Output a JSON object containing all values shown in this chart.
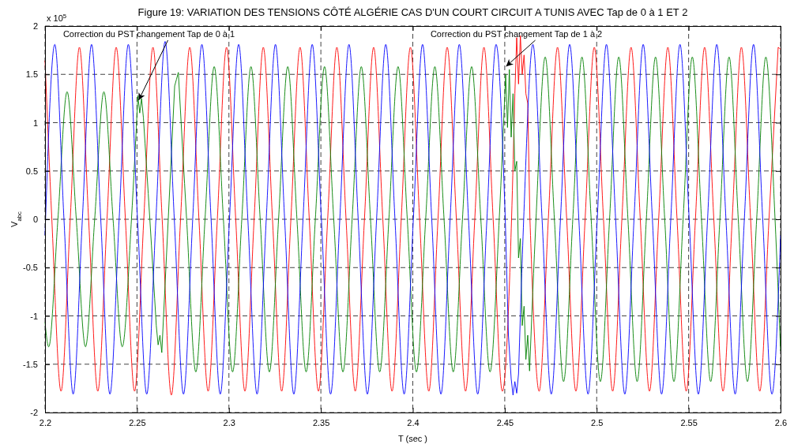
{
  "chart_data": {
    "type": "line",
    "title": "Figure 19: VARIATION DES TENSIONS CÔTÉ ALGÉRIE CAS D'UN COURT CIRCUIT A TUNIS AVEC Tap de 0 à 1 ET 2",
    "xlabel": "T (sec )",
    "ylabel": "V$_{abc}$",
    "xlim": [
      2.2,
      2.6
    ],
    "xticks": [
      2.2,
      2.25,
      2.3,
      2.35,
      2.4,
      2.45,
      2.5,
      2.55,
      2.6
    ],
    "ylim": [
      -2,
      2
    ],
    "yticks": [
      -2,
      -1.5,
      -1,
      -0.5,
      0,
      0.5,
      1,
      1.5,
      2
    ],
    "grid": true,
    "annotations": [
      "x 10$^{5}$",
      {
        "text": "Correction du PST changement Tap de 0 à 1",
        "x": 2.2505,
        "y": 1.2
      },
      {
        "text": "Correction du PST changement Tap de 1 à 2",
        "x": 2.4503,
        "y": 1.55
      }
    ],
    "series": [
      {
        "color": "#ff0000",
        "x": [
          2.2,
          2.2037,
          2.2087,
          2.2137,
          2.2187,
          2.2237,
          2.2287,
          2.2337,
          2.2387,
          2.2437,
          2.2487,
          2.2537,
          2.2587,
          2.2637,
          2.2687,
          2.2737,
          2.2787,
          2.2837,
          2.2887,
          2.2937,
          2.2987,
          2.3037,
          2.3087,
          2.3137,
          2.3187,
          2.3237,
          2.3287,
          2.3337,
          2.3387,
          2.3437,
          2.3487,
          2.3537,
          2.3587,
          2.3637,
          2.3687,
          2.3737,
          2.3787,
          2.3837,
          2.3887,
          2.3937,
          2.3987,
          2.4037,
          2.4087,
          2.4137,
          2.4187,
          2.4237,
          2.4287,
          2.4337,
          2.4387,
          2.4437,
          2.4487,
          2.4537,
          2.4555,
          2.4565,
          2.4575,
          2.4585,
          2.4595,
          2.4605,
          2.4615,
          2.4625,
          2.4637,
          2.4687,
          2.4737,
          2.4787,
          2.4837,
          2.4887,
          2.4937,
          2.4987,
          2.5037,
          2.5087,
          2.5137,
          2.5187,
          2.5237,
          2.5287,
          2.5337,
          2.5387,
          2.5437,
          2.5487,
          2.5537,
          2.5587,
          2.5637,
          2.5687,
          2.5737,
          2.5787,
          2.5837,
          2.5887,
          2.5937,
          2.5987,
          2.6
        ],
        "values": [
          1.64,
          0,
          -1.78,
          0,
          1.78,
          0,
          -1.78,
          0,
          1.78,
          0,
          -1.78,
          0,
          1.78,
          0,
          -1.82,
          0,
          1.78,
          0,
          -1.78,
          0,
          1.78,
          0,
          -1.78,
          0,
          1.78,
          0,
          -1.78,
          0,
          1.78,
          0,
          -1.78,
          0,
          1.78,
          0,
          -1.78,
          0,
          1.78,
          0,
          -1.78,
          0,
          1.78,
          0,
          -1.78,
          0,
          1.78,
          0,
          -1.78,
          0,
          1.78,
          0,
          -1.78,
          0,
          1.3,
          1.88,
          1.4,
          1.9,
          1.5,
          1.7,
          1.3,
          1.2,
          0,
          -1.78,
          0,
          1.78,
          0,
          -1.78,
          0,
          1.78,
          0,
          -1.78,
          0,
          1.78,
          0,
          -1.78,
          0,
          1.78,
          0,
          -1.78,
          0,
          1.78,
          0,
          -1.78,
          0,
          1.78,
          0,
          -1.78,
          0,
          1.78,
          1.76
        ]
      },
      {
        "color": "#008000",
        "x": [
          2.2,
          2.202,
          2.207,
          2.212,
          2.217,
          2.222,
          2.227,
          2.232,
          2.237,
          2.242,
          2.247,
          2.2505,
          2.2515,
          2.2525,
          2.2535,
          2.257,
          2.2605,
          2.2615,
          2.2625,
          2.2635,
          2.267,
          2.2705,
          2.2715,
          2.2725,
          2.277,
          2.282,
          2.287,
          2.292,
          2.297,
          2.302,
          2.307,
          2.312,
          2.317,
          2.322,
          2.327,
          2.332,
          2.337,
          2.342,
          2.347,
          2.352,
          2.357,
          2.362,
          2.367,
          2.372,
          2.377,
          2.382,
          2.387,
          2.392,
          2.397,
          2.402,
          2.407,
          2.412,
          2.417,
          2.422,
          2.427,
          2.432,
          2.437,
          2.442,
          2.447,
          2.4505,
          2.4515,
          2.4525,
          2.4535,
          2.4545,
          2.4555,
          2.4565,
          2.4575,
          2.4585,
          2.4595,
          2.4605,
          2.4615,
          2.4625,
          2.4635,
          2.467,
          2.472,
          2.477,
          2.482,
          2.487,
          2.492,
          2.497,
          2.502,
          2.507,
          2.512,
          2.517,
          2.522,
          2.527,
          2.532,
          2.537,
          2.542,
          2.547,
          2.552,
          2.557,
          2.562,
          2.567,
          2.572,
          2.577,
          2.582,
          2.587,
          2.592,
          2.597,
          2.6
        ],
        "values": [
          -1.07,
          -1.32,
          0,
          1.32,
          0,
          -1.32,
          0,
          1.32,
          0,
          -1.32,
          0,
          1.28,
          1.1,
          1.25,
          1.05,
          0,
          -1.1,
          -1.3,
          -1.2,
          -1.38,
          0,
          1.38,
          1.45,
          1.52,
          0,
          -1.58,
          0,
          1.58,
          0,
          -1.58,
          0,
          1.58,
          0,
          -1.58,
          0,
          1.58,
          0,
          -1.58,
          0,
          1.58,
          0,
          -1.58,
          0,
          1.58,
          0,
          -1.58,
          0,
          1.58,
          0,
          -1.58,
          0,
          1.58,
          0,
          -1.58,
          0,
          1.58,
          0,
          -1.58,
          0,
          1.5,
          0.95,
          1.55,
          0.85,
          1.3,
          0.5,
          0.6,
          -0.4,
          -0.2,
          -1.1,
          -0.9,
          -1.45,
          -1.2,
          -1.57,
          0,
          1.68,
          0,
          -1.68,
          0,
          1.68,
          0,
          -1.68,
          0,
          1.68,
          0,
          -1.68,
          0,
          1.68,
          0,
          -1.68,
          0,
          1.68,
          0,
          -1.68,
          0,
          1.68,
          0,
          -1.68,
          0,
          1.68,
          0,
          -1.36
        ]
      },
      {
        "color": "#0000ff",
        "x": [
          2.2,
          2.2053,
          2.2103,
          2.2153,
          2.2203,
          2.2253,
          2.2303,
          2.2353,
          2.2403,
          2.2453,
          2.2503,
          2.2553,
          2.2603,
          2.2653,
          2.2703,
          2.2753,
          2.2803,
          2.2853,
          2.2903,
          2.2953,
          2.3003,
          2.3053,
          2.3103,
          2.3153,
          2.3203,
          2.3253,
          2.3303,
          2.3353,
          2.3403,
          2.3453,
          2.3503,
          2.3553,
          2.3603,
          2.3653,
          2.3703,
          2.3753,
          2.3803,
          2.3853,
          2.3903,
          2.3953,
          2.4003,
          2.4053,
          2.4103,
          2.4153,
          2.4203,
          2.4253,
          2.4303,
          2.4353,
          2.4403,
          2.4453,
          2.4503,
          2.452,
          2.4535,
          2.4545,
          2.4555,
          2.4565,
          2.4575,
          2.4603,
          2.4653,
          2.4703,
          2.4753,
          2.4803,
          2.4853,
          2.4903,
          2.4953,
          2.5003,
          2.5053,
          2.5103,
          2.5153,
          2.5203,
          2.5253,
          2.5303,
          2.5353,
          2.5403,
          2.5453,
          2.5503,
          2.5553,
          2.5603,
          2.5653,
          2.5703,
          2.5753,
          2.5803,
          2.5853,
          2.5903,
          2.5953,
          2.6
        ],
        "values": [
          -0.16,
          1.81,
          0,
          -1.81,
          0,
          1.81,
          0,
          -1.81,
          0,
          1.81,
          0,
          -1.81,
          0,
          1.84,
          0,
          -1.81,
          0,
          1.81,
          0,
          -1.81,
          0,
          1.81,
          0,
          -1.81,
          0,
          1.81,
          0,
          -1.81,
          0,
          1.81,
          0,
          -1.81,
          0,
          1.81,
          0,
          -1.81,
          0,
          1.81,
          0,
          -1.81,
          0,
          1.81,
          0,
          -1.81,
          0,
          1.81,
          0,
          -1.81,
          0,
          1.81,
          0,
          -1.2,
          -1.65,
          -1.82,
          -1.68,
          -1.8,
          -1.6,
          0,
          1.81,
          0,
          -1.81,
          0,
          1.81,
          0,
          -1.81,
          0,
          1.81,
          0,
          -1.81,
          0,
          1.81,
          0,
          -1.81,
          0,
          1.81,
          0,
          -1.81,
          0,
          1.81,
          0,
          -1.81,
          0,
          1.81,
          0,
          -1.81,
          -0.17
        ]
      }
    ]
  }
}
